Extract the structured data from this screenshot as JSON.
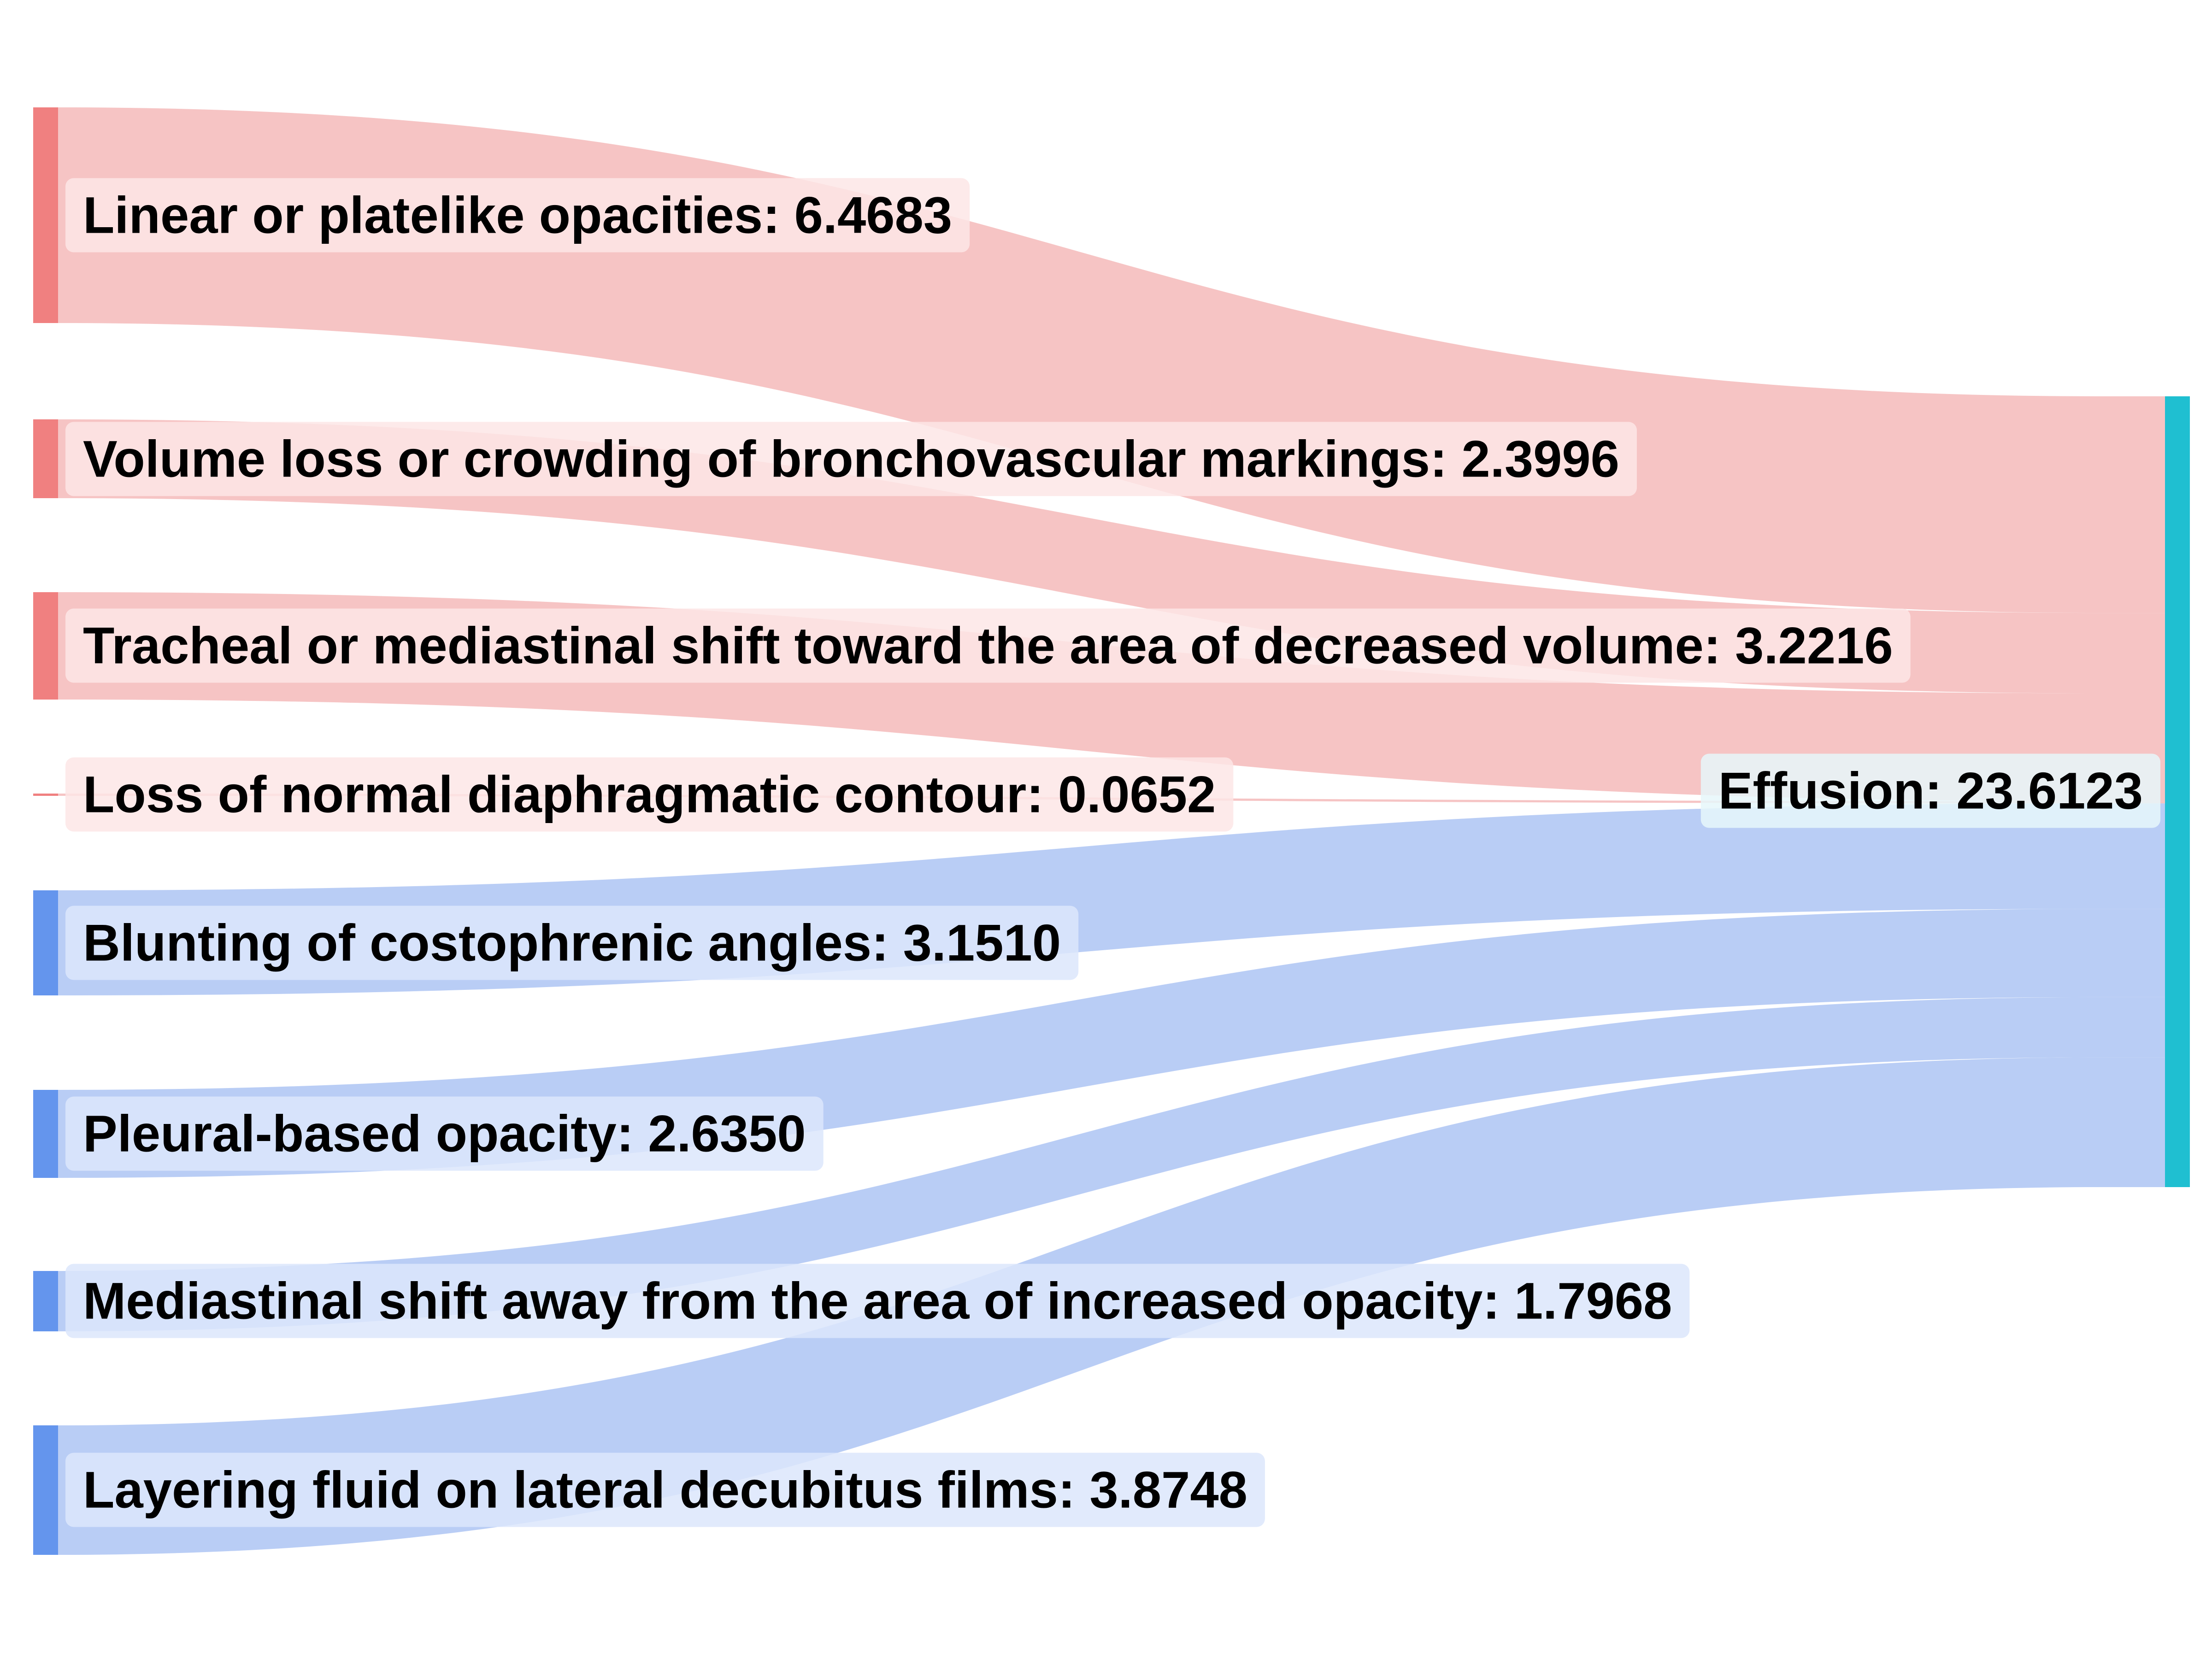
{
  "diagram": {
    "target": {
      "name": "Effusion",
      "value": "23.6123",
      "color": "#1fbfd1"
    },
    "sources": [
      {
        "name": "Linear or platelike opacities",
        "value": "6.4683",
        "group": "red"
      },
      {
        "name": "Volume loss or crowding of bronchovascular markings",
        "value": "2.3996",
        "group": "red"
      },
      {
        "name": "Tracheal or mediastinal shift toward the area of decreased volume",
        "value": "3.2216",
        "group": "red"
      },
      {
        "name": "Loss of normal diaphragmatic contour",
        "value": "0.0652",
        "group": "red"
      },
      {
        "name": "Blunting of costophrenic angles",
        "value": "3.1510",
        "group": "blue"
      },
      {
        "name": "Pleural-based opacity",
        "value": "2.6350",
        "group": "blue"
      },
      {
        "name": "Mediastinal shift away from the area of increased opacity",
        "value": "1.7968",
        "group": "blue"
      },
      {
        "name": "Layering fluid on lateral decubitus films",
        "value": "3.8748",
        "group": "blue"
      }
    ],
    "colors": {
      "red_node": "#f08080",
      "red_link": "#f6c4c4",
      "red_label_bg": "#fde6e6",
      "blue_node": "#6495ed",
      "blue_link": "#b9cdf5",
      "blue_label_bg": "#dce6fb",
      "target_label_bg": "#e6f7fa"
    }
  }
}
